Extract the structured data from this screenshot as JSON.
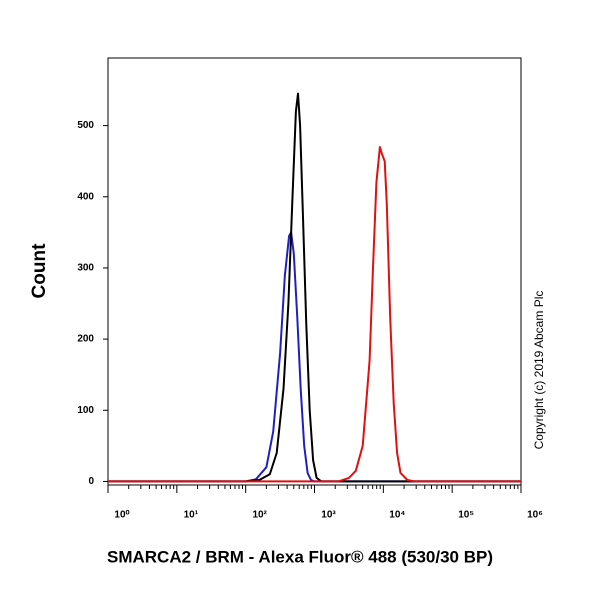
{
  "chart_data": {
    "type": "line",
    "xlabel": "SMARCA2 / BRM - Alexa Fluor® 488 (530/30 BP)",
    "ylabel": "Count",
    "annotation": "Copyright (c) 2019 Abcam Plc",
    "xscale": "log",
    "xlim": [
      1,
      1000000
    ],
    "ylim": [
      -5,
      595
    ],
    "xticks": [
      {
        "value": 1,
        "label": "10⁰"
      },
      {
        "value": 10,
        "label": "10¹"
      },
      {
        "value": 100,
        "label": "10²"
      },
      {
        "value": 1000,
        "label": "10³"
      },
      {
        "value": 10000,
        "label": "10⁴"
      },
      {
        "value": 100000,
        "label": "10⁵"
      },
      {
        "value": 1000000,
        "label": "10⁶"
      }
    ],
    "yticks": [
      0,
      100,
      200,
      300,
      400,
      500
    ],
    "series": [
      {
        "color": "#2020c0",
        "x": [
          1,
          100,
          141,
          200,
          251,
          316,
          372,
          427,
          457,
          501,
          562,
          631,
          708,
          794,
          891,
          1000,
          1000000
        ],
        "values": [
          0,
          0,
          3,
          20,
          70,
          180,
          290,
          345,
          350,
          320,
          230,
          130,
          50,
          12,
          2,
          0,
          0
        ]
      },
      {
        "color": "#000000",
        "x": [
          1,
          100,
          158,
          224,
          282,
          355,
          417,
          479,
          537,
          575,
          617,
          676,
          759,
          851,
          955,
          1072,
          1259,
          1000000
        ],
        "values": [
          0,
          0,
          2,
          10,
          40,
          130,
          250,
          400,
          520,
          545,
          500,
          380,
          220,
          100,
          30,
          5,
          0,
          0
        ]
      },
      {
        "color": "#e01010",
        "x": [
          1,
          2239,
          3162,
          3981,
          5012,
          6310,
          7079,
          7943,
          8913,
          9550,
          10471,
          11220,
          12589,
          14125,
          15849,
          17783,
          22387,
          28184,
          1000000
        ],
        "values": [
          0,
          0,
          5,
          15,
          50,
          170,
          300,
          420,
          470,
          460,
          450,
          390,
          230,
          110,
          40,
          12,
          2,
          0,
          0
        ]
      }
    ]
  }
}
